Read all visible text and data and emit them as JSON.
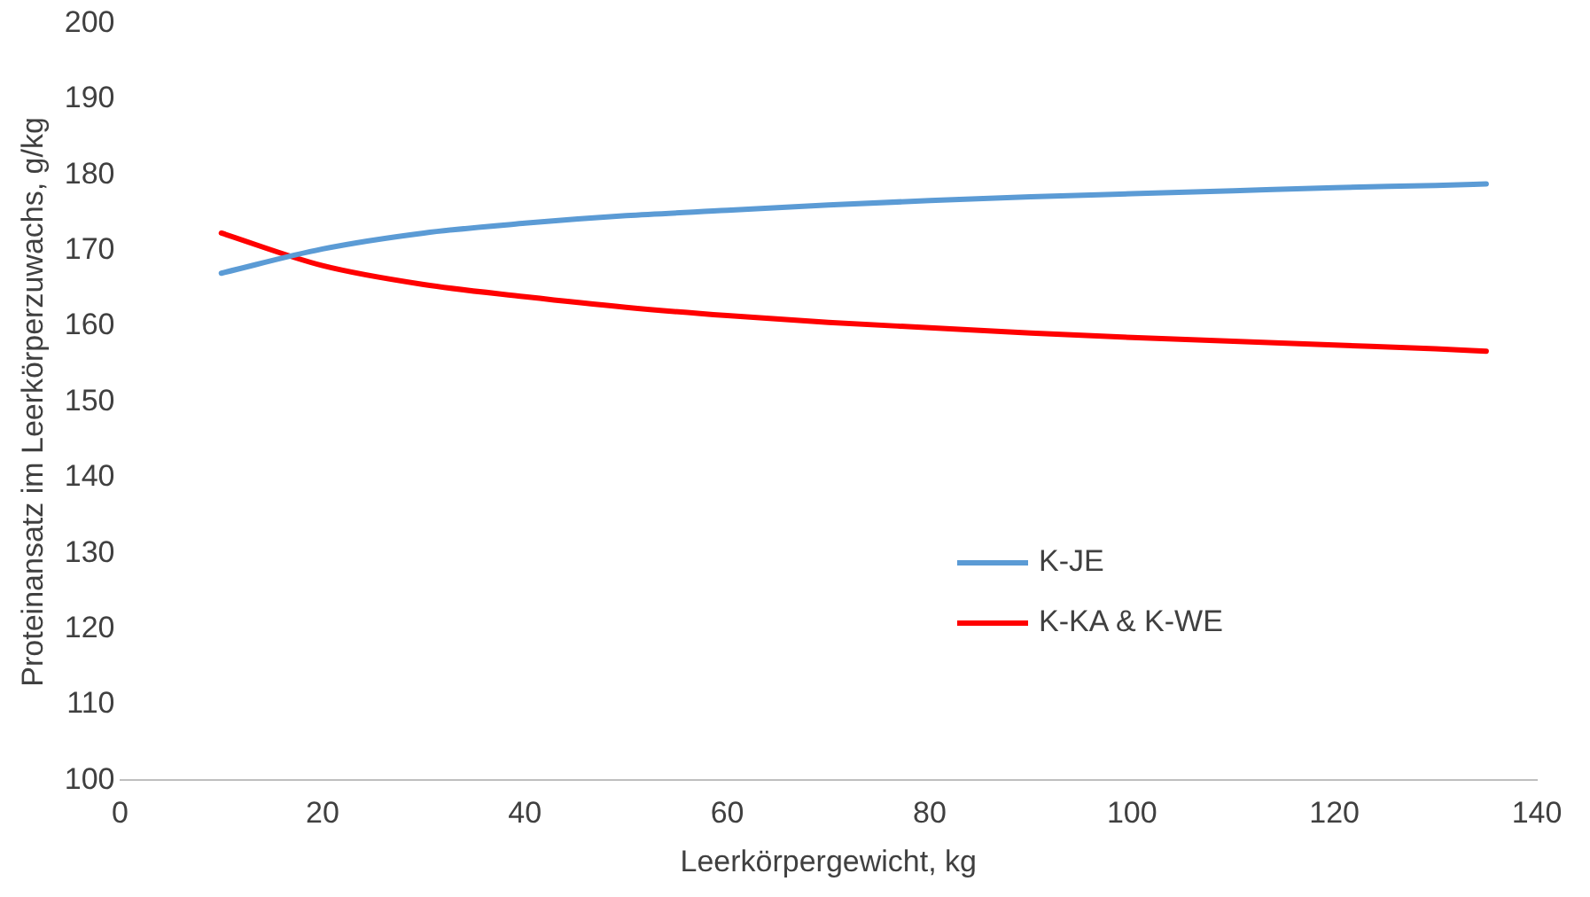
{
  "chart_data": {
    "type": "line",
    "xlabel": "Leerkörpergewicht, kg",
    "ylabel": "Proteinansatz im Leerkörperzuwachs, g/kg",
    "xlim": [
      0,
      140
    ],
    "xticks": [
      0,
      20,
      40,
      60,
      80,
      100,
      120,
      140
    ],
    "ylim": [
      100,
      200
    ],
    "yticks": [
      100,
      110,
      120,
      130,
      140,
      150,
      160,
      170,
      180,
      190,
      200
    ],
    "grid": false,
    "legend": "right",
    "marker": "none",
    "line_style": "solid",
    "x": [
      10,
      20,
      30,
      40,
      50,
      60,
      70,
      80,
      90,
      100,
      110,
      120,
      130,
      135
    ],
    "series": [
      {
        "name": "K-JE",
        "color": "#5b9bd5",
        "values": [
          167,
          170.2,
          172.3,
          173.6,
          174.6,
          175.3,
          176,
          176.6,
          177.1,
          177.5,
          177.9,
          178.3,
          178.6,
          178.8
        ]
      },
      {
        "name": "K-KA & K-WE",
        "color": "#ff0000",
        "values": [
          172.3,
          168,
          165.5,
          163.9,
          162.5,
          161.4,
          160.5,
          159.8,
          159.1,
          158.5,
          158,
          157.5,
          157,
          156.7
        ]
      }
    ]
  }
}
